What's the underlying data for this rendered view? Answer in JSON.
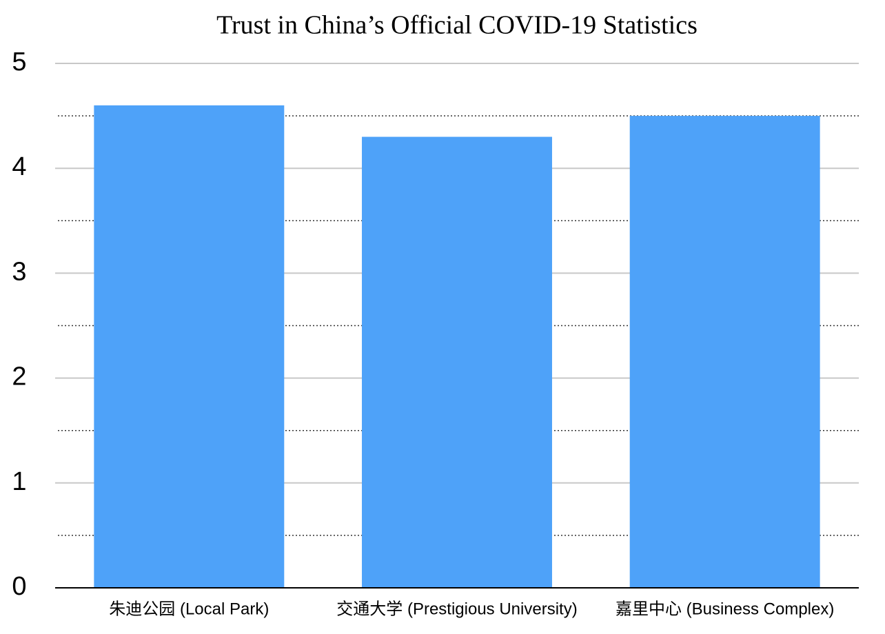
{
  "chart_data": {
    "type": "bar",
    "title": "Trust in China’s Official COVID-19 Statistics",
    "categories": [
      "朱迪公园 (Local Park)",
      "交通大学 (Prestigious University)",
      "嘉里中心 (Business Complex)"
    ],
    "values": [
      4.6,
      4.3,
      4.5
    ],
    "color": "#4ea2f9",
    "ylim": [
      0,
      5
    ],
    "yticks": [
      0,
      1,
      2,
      3,
      4,
      5
    ],
    "minor_yticks": [
      0.5,
      1.5,
      2.5,
      3.5,
      4.5
    ],
    "grid": true
  }
}
